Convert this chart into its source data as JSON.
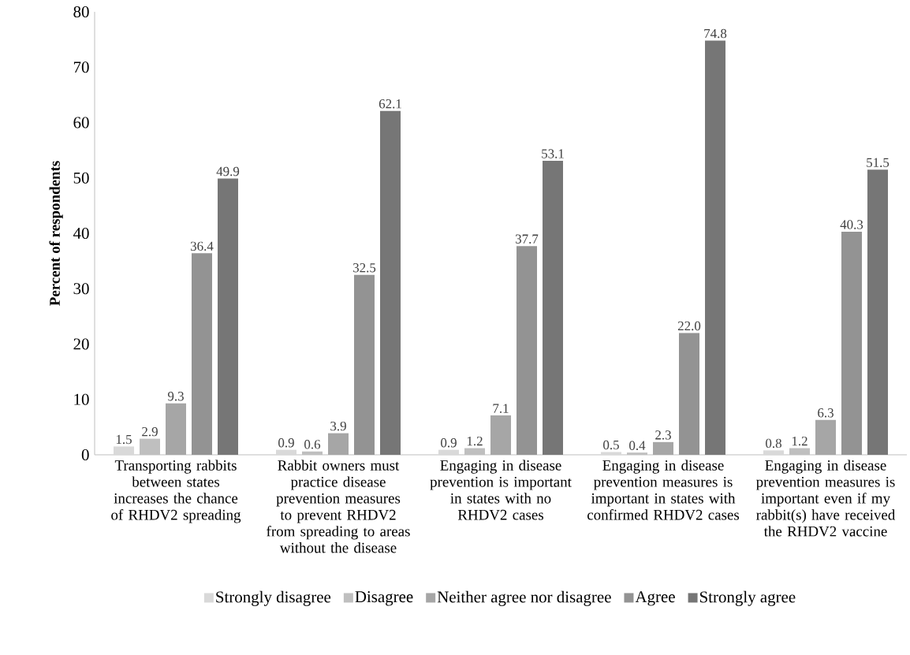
{
  "chart_data": {
    "type": "bar",
    "ylabel": "Percent of respondents",
    "categories": [
      "Transporting rabbits between states increases the chance of RHDV2 spreading",
      "Rabbit owners must practice disease prevention measures to prevent RHDV2 from spreading to areas without the disease",
      "Engaging in disease prevention is important in states with no RHDV2 cases",
      "Engaging in disease prevention measures is important in states with confirmed RHDV2 cases",
      "Engaging in disease prevention measures is important even if my rabbit(s) have received the RHDV2 vaccine"
    ],
    "series": [
      {
        "name": "Strongly disagree",
        "color": "#d9d9d9",
        "values": [
          1.5,
          0.9,
          0.9,
          0.5,
          0.8
        ],
        "value_labels": [
          "1.5",
          "0.9",
          "0.9",
          "0.5",
          "0.8"
        ]
      },
      {
        "name": "Disagree",
        "color": "#bfbfbf",
        "values": [
          2.9,
          0.6,
          1.2,
          0.4,
          1.2
        ],
        "value_labels": [
          "2.9",
          "0.6",
          "1.2",
          "0.4",
          "1.2"
        ]
      },
      {
        "name": "Neither agree nor disagree",
        "color": "#a6a6a6",
        "values": [
          9.3,
          3.9,
          7.1,
          2.3,
          6.3
        ],
        "value_labels": [
          "9.3",
          "3.9",
          "7.1",
          "2.3",
          "6.3"
        ]
      },
      {
        "name": "Agree",
        "color": "#939393",
        "values": [
          36.4,
          32.5,
          37.7,
          22.0,
          40.3
        ],
        "value_labels": [
          "36.4",
          "32.5",
          "37.7",
          "22.0",
          "40.3"
        ]
      },
      {
        "name": "Strongly agree",
        "color": "#767676",
        "values": [
          49.9,
          62.1,
          53.1,
          74.8,
          51.5
        ],
        "value_labels": [
          "49.9",
          "62.1",
          "53.1",
          "74.8",
          "51.5"
        ]
      }
    ],
    "ylim": [
      0,
      80
    ],
    "yticks": [
      0,
      10,
      20,
      30,
      40,
      50,
      60,
      70,
      80
    ],
    "legend": "bottom"
  }
}
